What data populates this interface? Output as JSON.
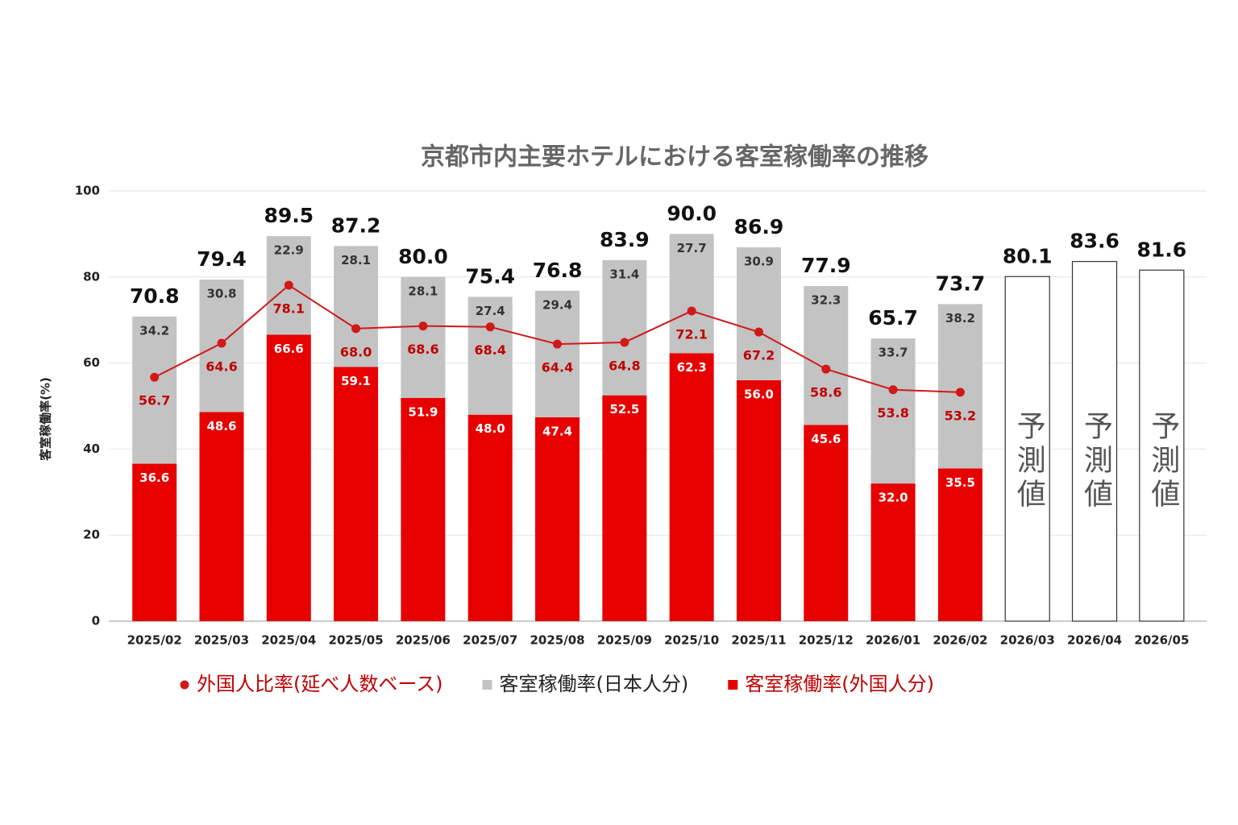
{
  "chart_data": {
    "type": "bar",
    "title": "京都市内主要ホテルにおける客室稼働率の推移",
    "y_label": "客室稼働率(%)",
    "categories": [
      "2025/02",
      "2025/03",
      "2025/04",
      "2025/05",
      "2025/06",
      "2025/07",
      "2025/08",
      "2025/09",
      "2025/10",
      "2025/11",
      "2025/12",
      "2026/01",
      "2026/02",
      "2026/03",
      "2026/04",
      "2026/05"
    ],
    "ylim": [
      0,
      100
    ],
    "yticks": [
      0,
      20,
      40,
      60,
      80,
      100
    ],
    "grid": true,
    "legend": "bottom",
    "series": [
      {
        "name": "外国人比率(延べ人数ベース)",
        "type": "line",
        "color": "#d01919",
        "values": [
          56.7,
          64.6,
          78.1,
          68.0,
          68.6,
          68.4,
          64.4,
          64.8,
          72.1,
          67.2,
          58.6,
          53.8,
          53.2,
          null,
          null,
          null
        ],
        "value_labels": [
          "56.7",
          "64.6",
          "78.1",
          "68.0",
          "68.6",
          "68.4",
          "64.4",
          "64.8",
          "72.1",
          "67.2",
          "58.6",
          "53.8",
          "53.2",
          null,
          null,
          null
        ]
      },
      {
        "name": "客室稼働率(日本人分)",
        "type": "bar",
        "stack": 1,
        "color": "#c3c3c3",
        "values": [
          34.2,
          30.8,
          22.9,
          28.1,
          28.1,
          27.4,
          29.4,
          31.4,
          27.7,
          30.9,
          32.3,
          33.7,
          38.2,
          null,
          null,
          null
        ]
      },
      {
        "name": "客室稼働率(外国人分)",
        "type": "bar",
        "stack": 0,
        "color": "#e60000",
        "values": [
          36.6,
          48.6,
          66.6,
          59.1,
          51.9,
          48.0,
          47.4,
          52.5,
          62.3,
          56.0,
          45.6,
          32.0,
          35.5,
          null,
          null,
          null
        ],
        "value_labels": [
          "36.6",
          "48.6",
          "66.6",
          "59.1",
          "51.9",
          "48.0",
          "47.4",
          "52.5",
          "62.3",
          "56.0",
          "45.6",
          "32.0",
          "35.5",
          null,
          null,
          null
        ]
      }
    ],
    "totals": {
      "values": [
        70.8,
        79.4,
        89.5,
        87.2,
        80.0,
        75.4,
        76.8,
        83.9,
        90.0,
        86.9,
        77.9,
        65.7,
        73.7,
        80.1,
        83.6,
        81.6
      ],
      "value_labels": [
        "70.8",
        "79.4",
        "89.5",
        "87.2",
        "80.0",
        "75.4",
        "76.8",
        "83.9",
        "90.0",
        "86.9",
        "77.9",
        "65.7",
        "73.7",
        "80.1",
        "83.6",
        "81.6"
      ]
    },
    "forecast_label": "予測値"
  }
}
